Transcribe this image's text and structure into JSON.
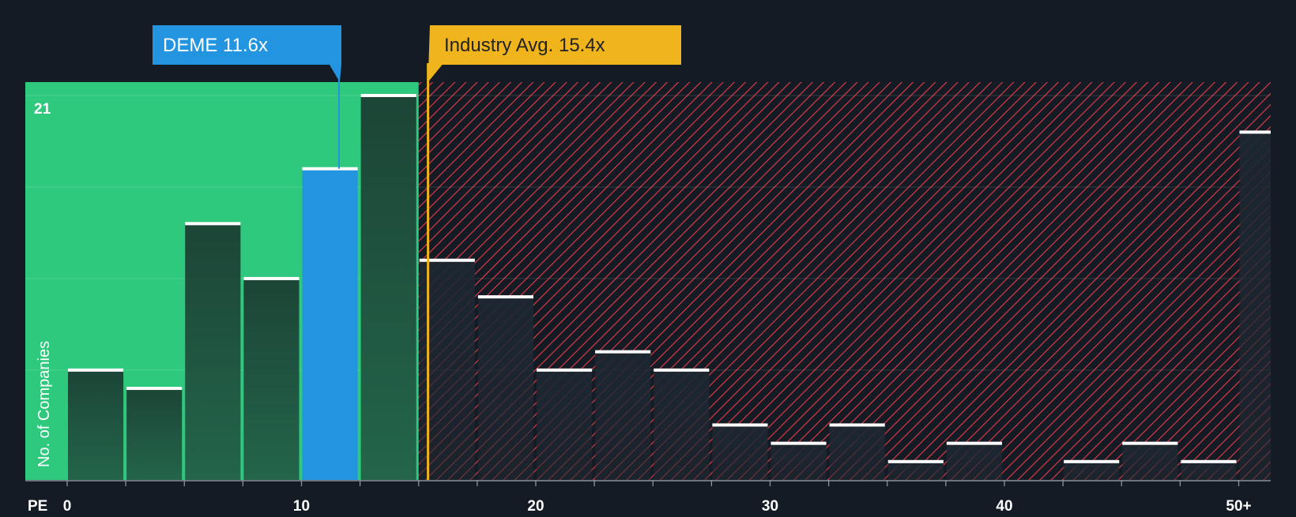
{
  "chart_data": {
    "type": "bar",
    "title": "",
    "xlabel": "PE",
    "ylabel": "No. of Companies",
    "x_ticks": [
      "0",
      "10",
      "20",
      "30",
      "40",
      "50+"
    ],
    "x_tick_values": [
      0,
      10,
      20,
      30,
      40,
      50
    ],
    "y_tick_labels": [
      "21"
    ],
    "ylim": [
      0,
      21.7
    ],
    "grid": true,
    "bin_width": 2.5,
    "bins": [
      {
        "start": 0,
        "count": 6
      },
      {
        "start": 2.5,
        "count": 5
      },
      {
        "start": 5,
        "count": 14
      },
      {
        "start": 7.5,
        "count": 11
      },
      {
        "start": 10,
        "count": 17,
        "highlight": true
      },
      {
        "start": 12.5,
        "count": 21
      },
      {
        "start": 15,
        "count": 12
      },
      {
        "start": 17.5,
        "count": 10
      },
      {
        "start": 20,
        "count": 6
      },
      {
        "start": 22.5,
        "count": 7
      },
      {
        "start": 25,
        "count": 6
      },
      {
        "start": 27.5,
        "count": 3
      },
      {
        "start": 30,
        "count": 2
      },
      {
        "start": 32.5,
        "count": 3
      },
      {
        "start": 35,
        "count": 1
      },
      {
        "start": 37.5,
        "count": 2
      },
      {
        "start": 40,
        "count": 0
      },
      {
        "start": 42.5,
        "count": 1
      },
      {
        "start": 45,
        "count": 2
      },
      {
        "start": 47.5,
        "count": 1
      },
      {
        "start": 50,
        "count": 19
      }
    ],
    "fair_range_max": 15,
    "markers": {
      "company": {
        "label": "DEME 11.6x",
        "value": 11.6,
        "color": "#2394e0"
      },
      "industry": {
        "label": "Industry Avg. 15.4x",
        "value": 15.4,
        "color": "#f0b41c"
      }
    },
    "colors": {
      "background": "#151b24",
      "fair_zone": "#2fc97d",
      "bar_fill": "#1d4a3b",
      "bar_over": "#1e2630",
      "hatch": "#d83a44",
      "bar_top": "#ffffff"
    }
  }
}
